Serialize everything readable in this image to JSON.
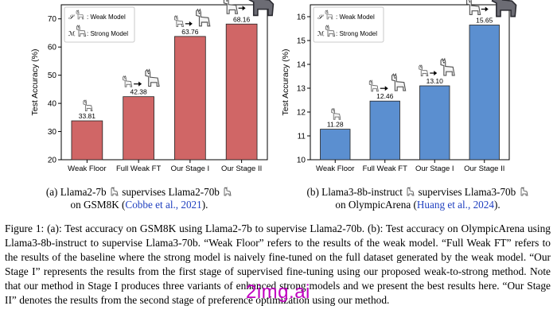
{
  "chart_data": [
    {
      "type": "bar",
      "categories": [
        "Weak Floor",
        "Full Weak FT",
        "Our Stage I",
        "Our Stage II"
      ],
      "values": [
        33.81,
        42.38,
        63.76,
        68.16
      ],
      "value_labels": [
        "33.81",
        "42.38",
        "63.76",
        "68.16"
      ],
      "ylabel": "Test Accuracy (%)",
      "ylim": [
        20,
        75
      ],
      "yticks": [
        "20",
        "30",
        "40",
        "50",
        "60",
        "70"
      ],
      "bar_color": "#d06666",
      "legend": {
        "weak_symbol": "𝒮",
        "weak": ": Weak Model",
        "strong_symbol": "ℳ",
        "strong": ": Strong Model",
        "position": "top-left"
      }
    },
    {
      "type": "bar",
      "categories": [
        "Weak Floor",
        "Full Weak FT",
        "Our Stage I",
        "Our Stage II"
      ],
      "values": [
        11.28,
        12.46,
        13.1,
        15.65
      ],
      "value_labels": [
        "11.28",
        "12.46",
        "13.10",
        "15.65"
      ],
      "ylabel": "Test Accuracy (%)",
      "ylim": [
        10,
        16.5
      ],
      "yticks": [
        "10",
        "11",
        "12",
        "13",
        "14",
        "15",
        "16"
      ],
      "bar_color": "#5b8fd0",
      "legend": {
        "weak_symbol": "𝒮",
        "weak": ": Weak Model",
        "strong_symbol": "ℳ",
        "strong": ": Strong Model",
        "position": "top-left"
      }
    }
  ],
  "captions": {
    "a_line1_pre": "(a) Llama2-7b",
    "a_line1_mid": "supervises Llama2-70b",
    "a_line2_pre": "on GSM8K (",
    "a_line2_cite": "Cobbe et al., 2021",
    "a_line2_post": ").",
    "b_line1_pre": "(b) Llama3-8b-instruct",
    "b_line1_mid": "supervises Llama3-70b",
    "b_line2_pre": "on OlympicArena (",
    "b_line2_cite": "Huang et al., 2024",
    "b_line2_post": ")."
  },
  "figure_caption": "Figure 1: (a): Test accuracy on GSM8K using Llama2-7b to supervise Llama2-70b. (b): Test accuracy on OlympicArena using Llama3-8b-instruct to supervise Llama3-70b. “Weak Floor” refers to the results of the weak model. “Full Weak FT” refers to the results of the baseline where the strong model is naively fine-tuned on the full dataset generated by the weak model. “Our Stage I” represents the results from the first stage of supervised fine-tuning using our proposed weak-to-strong method. Note that our method in Stage I produces three variants of enhanced strong models and we present the best results here. “Our Stage II” denotes the results from the second stage of preference optimization using our method.",
  "watermark": "2img.ai"
}
